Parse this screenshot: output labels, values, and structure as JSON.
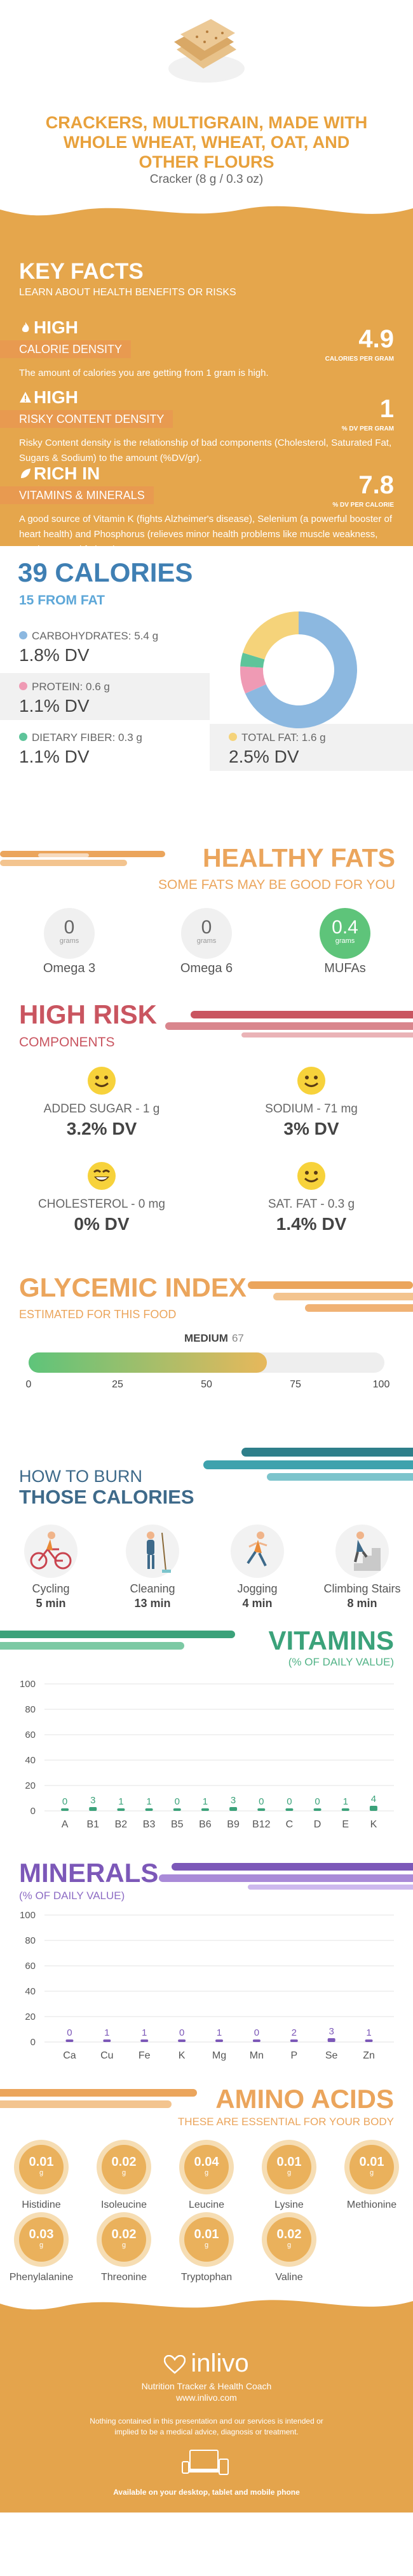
{
  "hero": {
    "title": "CRACKERS, MULTIGRAIN, MADE WITH WHOLE WHEAT, WHEAT, OAT, AND OTHER FLOURS",
    "serving": "Cracker (8 g / 0.3 oz)"
  },
  "key_facts": {
    "title": "KEY FACTS",
    "subtitle": "LEARN ABOUT HEALTH BENEFITS OR RISKS",
    "items": [
      {
        "level": "HIGH",
        "label": "CALORIE DENSITY",
        "value": "4.9",
        "unit": "CALORIES PER GRAM",
        "desc": "The amount of calories you are getting from 1 gram is high."
      },
      {
        "level": "HIGH",
        "label": "RISKY CONTENT DENSITY",
        "value": "1",
        "unit": "% DV PER GRAM",
        "desc": "Risky Content density is the relationship of bad components (Cholesterol, Saturated Fat, Sugars & Sodium) to the amount (%DV/gr)."
      },
      {
        "level": "RICH  IN",
        "label": "VITAMINS & MINERALS",
        "value": "7.8",
        "unit": "% DV PER CALORIE",
        "desc": "A good source of Vitamin K (fights Alzheimer's disease), Selenium (a powerful booster of heart health) and Phosphorus (relieves minor health problems like muscle weakness, numbness and fatigue)."
      }
    ]
  },
  "calories": {
    "title": "39 CALORIES",
    "subtitle": "15 FROM FAT",
    "nutrients": [
      {
        "name": "CARBOHYDRATES:",
        "amount": "5.4 g",
        "dv": "1.8% DV",
        "color": "#8cb8e0"
      },
      {
        "name": "PROTEIN:",
        "amount": "0.6 g",
        "dv": "1.1% DV",
        "color": "#ef9ab4"
      },
      {
        "name": "DIETARY FIBER:",
        "amount": "0.3 g",
        "dv": "1.1% DV",
        "color": "#5ec49a"
      },
      {
        "name": "TOTAL FAT:",
        "amount": "1.6 g",
        "dv": "2.5% DV",
        "color": "#f5d37a"
      }
    ]
  },
  "chart_data": {
    "type": "pie",
    "categories": [
      "Carbohydrates",
      "Protein",
      "Dietary fiber",
      "Total fat"
    ],
    "values": [
      5.4,
      0.6,
      0.3,
      1.6
    ],
    "colors": [
      "#8cb8e0",
      "#ef9ab4",
      "#5ec49a",
      "#f5d37a"
    ]
  },
  "healthy_fats": {
    "title": "HEALTHY FATS",
    "subtitle": "SOME FATS MAY BE GOOD FOR YOU",
    "items": [
      {
        "value": "0",
        "unit": "grams",
        "label": "Omega 3"
      },
      {
        "value": "0",
        "unit": "grams",
        "label": "Omega 6"
      },
      {
        "value": "0.4",
        "unit": "grams",
        "label": "MUFAs"
      }
    ]
  },
  "high_risk": {
    "title": "HIGH RISK",
    "subtitle": "COMPONENTS",
    "items": [
      {
        "label": "ADDED SUGAR - 1 g",
        "dv": "3.2% DV"
      },
      {
        "label": "SODIUM - 71 mg",
        "dv": "3% DV"
      },
      {
        "label": "CHOLESTEROL - 0 mg",
        "dv": "0% DV"
      },
      {
        "label": "SAT. FAT - 0.3 g",
        "dv": "1.4% DV"
      }
    ]
  },
  "glycemic": {
    "title": "GLYCEMIC INDEX",
    "subtitle": "ESTIMATED FOR THIS FOOD",
    "level": "MEDIUM",
    "value": "67",
    "fill": 0.67,
    "ticks": [
      "0",
      "25",
      "50",
      "75",
      "100"
    ]
  },
  "burn": {
    "title1": "HOW TO BURN",
    "title2": "THOSE CALORIES",
    "activities": [
      {
        "name": "Cycling",
        "time": "5 min"
      },
      {
        "name": "Cleaning",
        "time": "13 min"
      },
      {
        "name": "Jogging",
        "time": "4 min"
      },
      {
        "name": "Climbing Stairs",
        "time": "8 min"
      }
    ]
  },
  "vitamins": {
    "title": "VITAMINS",
    "subtitle": "(% OF DAILY VALUE)",
    "yticks": [
      "0",
      "20",
      "40",
      "60",
      "80",
      "100"
    ],
    "categories": [
      "A",
      "B1",
      "B2",
      "B3",
      "B5",
      "B6",
      "B9",
      "B12",
      "C",
      "D",
      "E",
      "K"
    ],
    "values": [
      0,
      3,
      1,
      1,
      0,
      1,
      3,
      0,
      0,
      0,
      1,
      4
    ],
    "color": "#3ba27a"
  },
  "minerals": {
    "title": "MINERALS",
    "subtitle": "(% OF DAILY VALUE)",
    "yticks": [
      "0",
      "20",
      "40",
      "60",
      "80",
      "100"
    ],
    "categories": [
      "Ca",
      "Cu",
      "Fe",
      "K",
      "Mg",
      "Mn",
      "P",
      "Se",
      "Zn"
    ],
    "values": [
      0,
      1,
      1,
      0,
      1,
      0,
      2,
      3,
      1
    ],
    "color": "#7c58b8"
  },
  "amino": {
    "title": "AMINO ACIDS",
    "subtitle": "THESE ARE ESSENTIAL FOR YOUR BODY",
    "items": [
      {
        "value": "0.01",
        "unit": "g",
        "label": "Histidine"
      },
      {
        "value": "0.02",
        "unit": "g",
        "label": "Isoleucine"
      },
      {
        "value": "0.04",
        "unit": "g",
        "label": "Leucine"
      },
      {
        "value": "0.01",
        "unit": "g",
        "label": "Lysine"
      },
      {
        "value": "0.01",
        "unit": "g",
        "label": "Methionine"
      },
      {
        "value": "0.03",
        "unit": "g",
        "label": "Phenylalanine"
      },
      {
        "value": "0.02",
        "unit": "g",
        "label": "Threonine"
      },
      {
        "value": "0.01",
        "unit": "g",
        "label": "Tryptophan"
      },
      {
        "value": "0.02",
        "unit": "g",
        "label": "Valine"
      }
    ]
  },
  "footer": {
    "brand": "inlivo",
    "tagline": "Nutrition Tracker & Health Coach",
    "url": "www.inlivo.com",
    "disclaimer": "Nothing contained in this presentation and our services is intended or implied to be a medical advice, diagnosis or treatment.",
    "available": "Available on your desktop, tablet and mobile phone"
  }
}
